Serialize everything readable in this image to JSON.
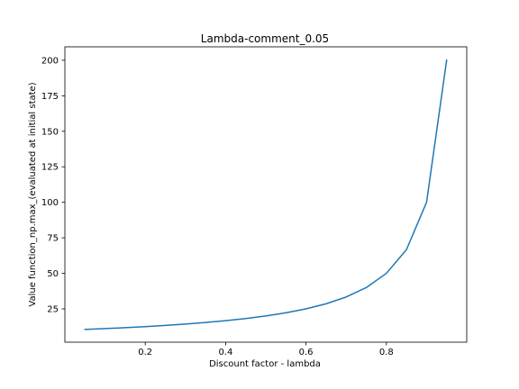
{
  "chart_data": {
    "type": "line",
    "title": "Lambda-comment_0.05",
    "xlabel": "Discount factor - lambda",
    "ylabel": "Value function_np.max_(evaluated at initial state)",
    "xlim": [
      0.0,
      1.0
    ],
    "ylim": [
      1.55,
      209.45
    ],
    "xticks": [
      0.2,
      0.4,
      0.6,
      0.8
    ],
    "xtick_labels": [
      "0.2",
      "0.4",
      "0.6",
      "0.8"
    ],
    "yticks": [
      25,
      50,
      75,
      100,
      125,
      150,
      175,
      200
    ],
    "ytick_labels": [
      "25",
      "50",
      "75",
      "100",
      "125",
      "150",
      "175",
      "200"
    ],
    "grid": false,
    "series": [
      {
        "color": "#1f77b4",
        "x": [
          0.05,
          0.1,
          0.15,
          0.2,
          0.25,
          0.3,
          0.35,
          0.4,
          0.45,
          0.5,
          0.55,
          0.6,
          0.65,
          0.7,
          0.75,
          0.8,
          0.85,
          0.9,
          0.95
        ],
        "y": [
          10.53,
          11.11,
          11.76,
          12.5,
          13.33,
          14.29,
          15.38,
          16.67,
          18.18,
          20.0,
          22.22,
          25.0,
          28.57,
          33.33,
          40.0,
          50.0,
          66.67,
          100.0,
          200.0
        ]
      }
    ]
  }
}
